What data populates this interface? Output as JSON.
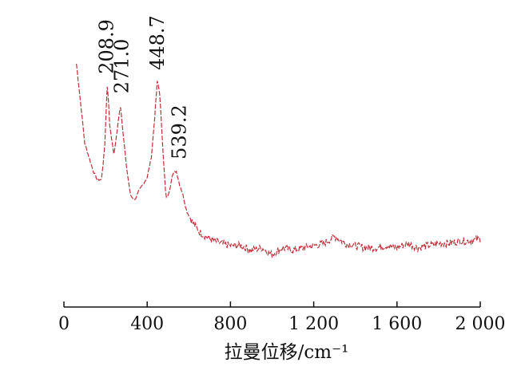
{
  "chart_data": {
    "type": "line",
    "title": "",
    "xlabel": "拉曼位移/cm⁻¹",
    "ylabel": "",
    "xlim": [
      0,
      2000
    ],
    "xticks": [
      0,
      400,
      800,
      1200,
      1600,
      2000
    ],
    "xtick_labels": [
      "0",
      "400",
      "800",
      "1 200",
      "1 600",
      "2 000"
    ],
    "grid": false,
    "line_color": "#c0303a",
    "line_style": "dashed",
    "intensity_scale": "relative (0-100, y axis not labeled)",
    "series": [
      {
        "x": [
          60,
          80,
          100,
          120,
          140,
          160,
          180,
          195,
          208.9,
          220,
          240,
          255,
          271.0,
          285,
          300,
          320,
          340,
          360,
          380,
          400,
          420,
          435,
          448.7,
          460,
          475,
          490,
          505,
          520,
          539.2,
          555,
          570,
          590,
          620,
          650,
          700,
          750,
          800,
          850,
          900,
          950,
          1000,
          1050,
          1100,
          1150,
          1200,
          1250,
          1300,
          1350,
          1400,
          1450,
          1500,
          1550,
          1600,
          1650,
          1700,
          1750,
          1800,
          1850,
          1900,
          1950,
          2000
        ],
        "y": [
          93,
          76,
          58,
          52,
          46,
          42,
          42,
          55,
          85,
          66,
          53,
          63,
          75,
          62,
          48,
          35,
          33,
          37,
          40,
          43,
          52,
          68,
          86,
          80,
          56,
          34,
          36,
          44,
          46,
          40,
          36,
          28,
          23,
          19,
          16,
          14,
          13,
          13,
          11,
          12,
          9,
          12,
          11,
          12,
          13,
          14,
          17,
          14,
          13,
          12,
          12,
          13,
          12,
          14,
          12,
          13,
          14,
          14,
          15,
          15,
          16
        ]
      }
    ],
    "annotations": [
      {
        "text": "208.9",
        "x": 208.9
      },
      {
        "text": "271.0",
        "x": 271.0
      },
      {
        "text": "448.7",
        "x": 448.7
      },
      {
        "text": "539.2",
        "x": 539.2
      }
    ]
  }
}
